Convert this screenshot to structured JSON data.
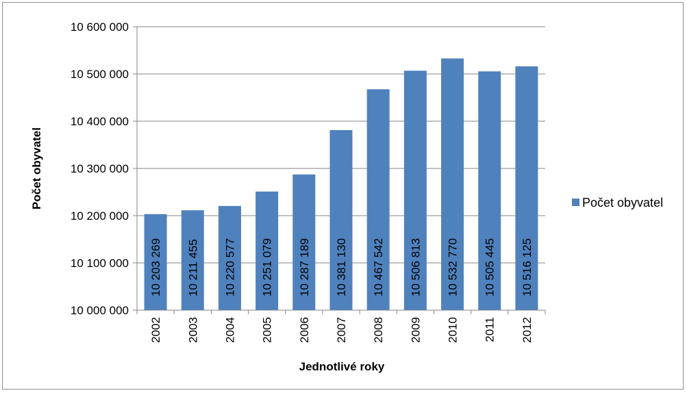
{
  "chart_data": {
    "type": "bar",
    "categories": [
      "2002",
      "2003",
      "2004",
      "2005",
      "2006",
      "2007",
      "2008",
      "2009",
      "2010",
      "2011",
      "2012"
    ],
    "series": [
      {
        "name": "Počet obyvatel",
        "values": [
          10203269,
          10211455,
          10220577,
          10251079,
          10287189,
          10381130,
          10467542,
          10506813,
          10532770,
          10505445,
          10516125
        ],
        "labels": [
          "10 203 269",
          "10 211 455",
          "10 220 577",
          "10 251 079",
          "10 287 189",
          "10 381 130",
          "10 467 542",
          "10 506 813",
          "10 532 770",
          "10 505 445",
          "10 516 125"
        ]
      }
    ],
    "xlabel": "Jednotlivé roky",
    "ylabel": "Počet obyvatel",
    "ylim": [
      10000000,
      10600000
    ],
    "yticks": [
      10000000,
      10100000,
      10200000,
      10300000,
      10400000,
      10500000,
      10600000
    ],
    "ytick_labels": [
      "10 000 000",
      "10 100 000",
      "10 200 000",
      "10 300 000",
      "10 400 000",
      "10 500 000",
      "10 600 000"
    ],
    "grid": true,
    "legend_position": "right",
    "colors": {
      "bar": "#4f81bd",
      "grid": "#868686",
      "axis": "#868686",
      "border": "#8c8c8c"
    }
  }
}
